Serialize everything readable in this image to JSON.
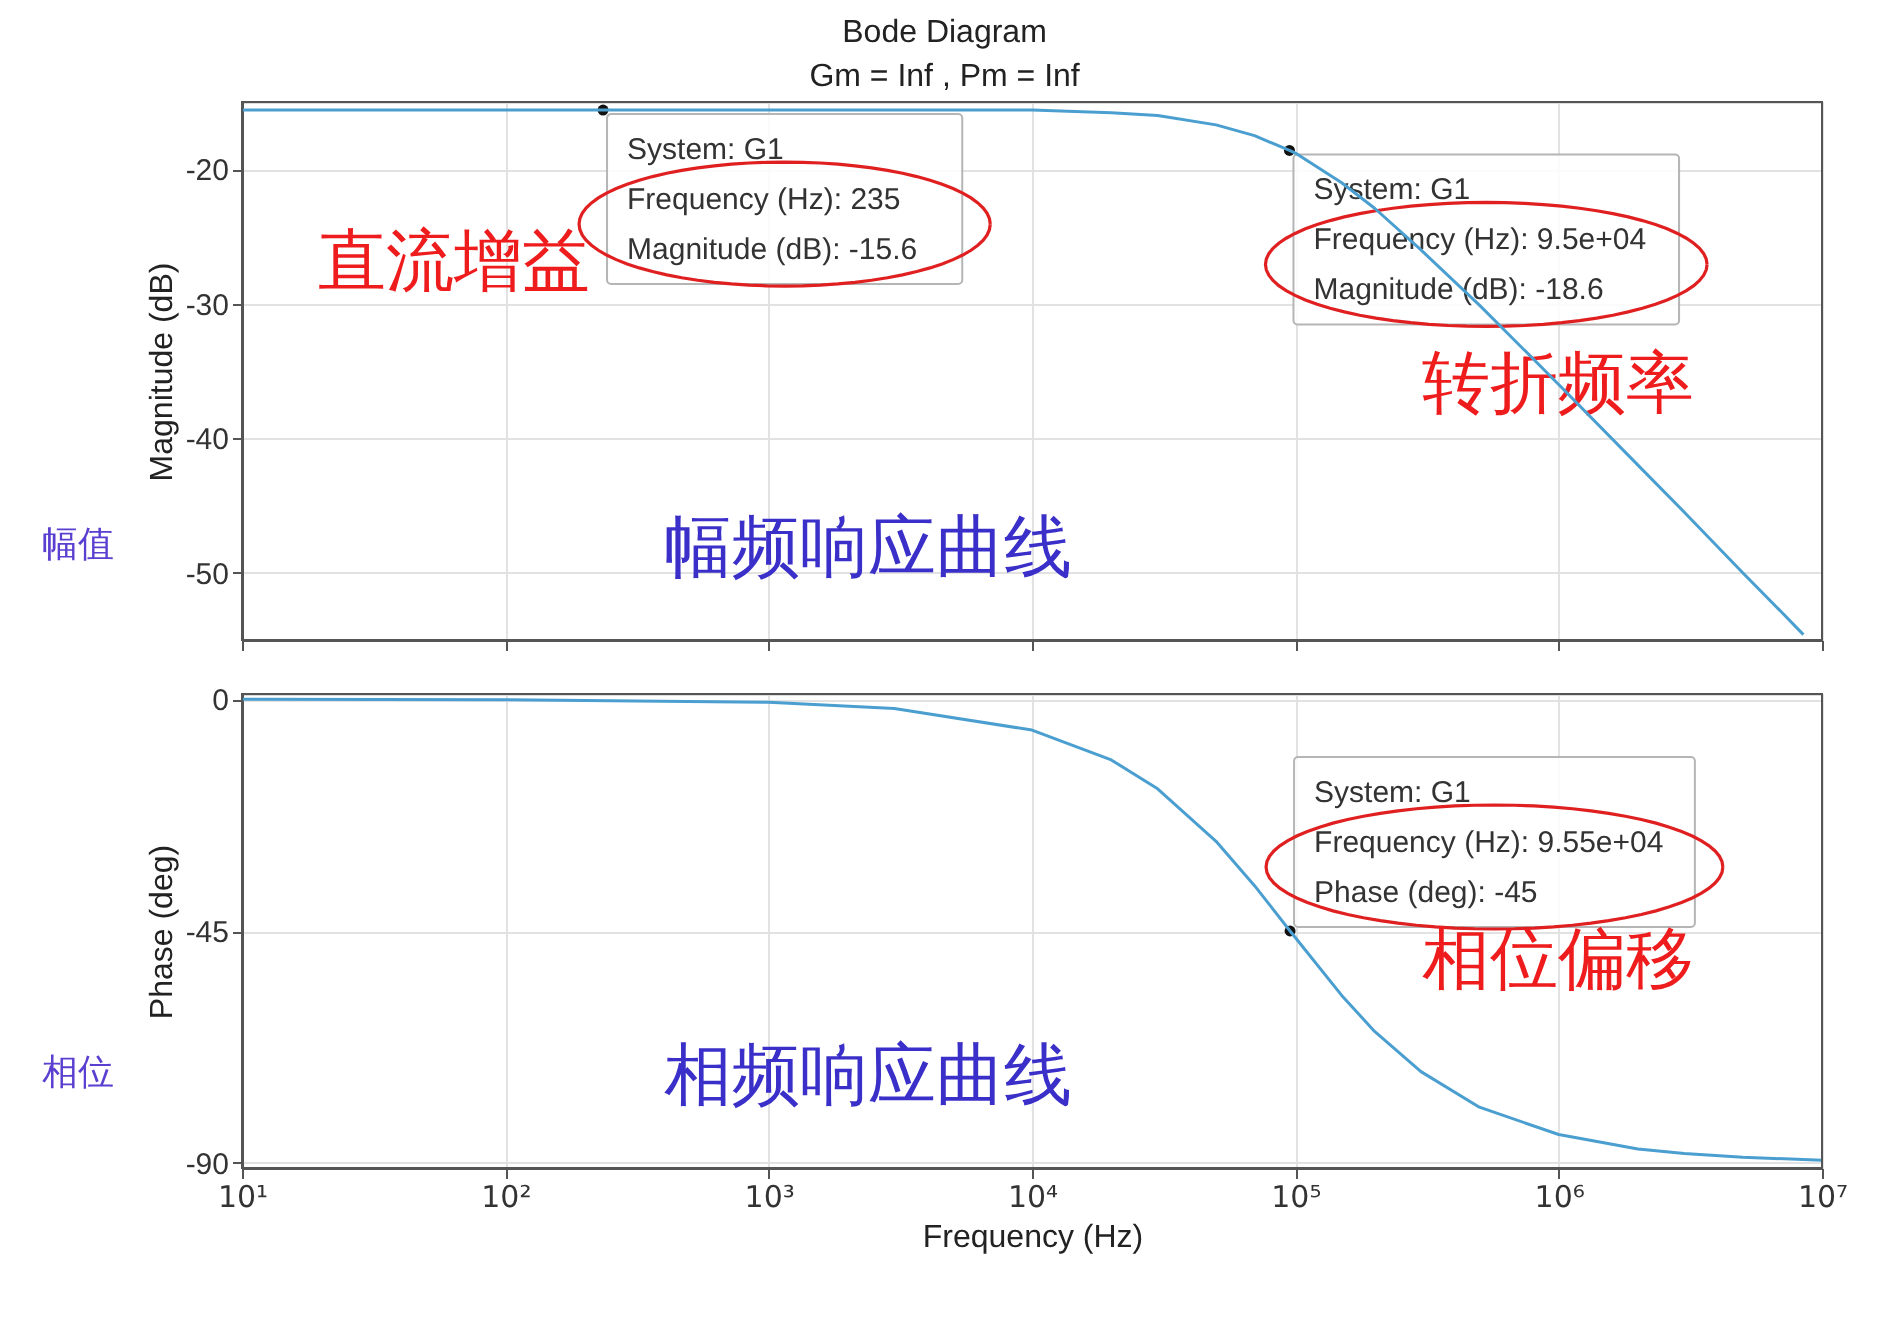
{
  "chart_data": [
    {
      "type": "line",
      "title": "Bode Diagram",
      "subtitle": "Gm = Inf ,  Pm = Inf",
      "ylabel": "Magnitude (dB)",
      "x": [
        10,
        100,
        1000,
        5000,
        10000,
        20000,
        30000,
        50000,
        70000,
        95000,
        100000,
        150000,
        200000,
        300000,
        500000,
        1000000,
        2000000,
        3000000,
        5000000,
        7000000,
        8500000
      ],
      "series": [
        {
          "color": "#4a9fd0",
          "values": [
            -15.6,
            -15.6,
            -15.6,
            -15.6,
            -15.6,
            -15.8,
            -16.0,
            -16.7,
            -17.5,
            -18.6,
            -18.8,
            -21.0,
            -22.9,
            -26.0,
            -30.1,
            -36.0,
            -42.0,
            -45.5,
            -50.0,
            -52.9,
            -54.6
          ]
        }
      ],
      "xlim": [
        10,
        10000000
      ],
      "xticks": [
        10,
        100,
        1000,
        10000,
        100000,
        1000000,
        10000000
      ],
      "log": "x",
      "ylim": [
        -55,
        -15
      ],
      "yticks": [
        -50,
        -40,
        -30,
        -20
      ],
      "grid": true,
      "tick_labels": "y",
      "annotations": [
        {
          "text": "System: G1\nFrequency (Hz): 235\nMagnitude (dB): -15.6",
          "x": 235,
          "y": -15.6
        },
        {
          "text": "System: G1\nFrequency (Hz): 9.5e+04\nMagnitude (dB): -18.6",
          "x": 95000,
          "y": -18.6
        },
        "直流增益",
        "转折频率",
        "幅频响应曲线",
        "幅值"
      ]
    },
    {
      "type": "line",
      "xlabel": "Frequency  (Hz)",
      "ylabel": "Phase (deg)",
      "x": [
        10,
        100,
        1000,
        3000,
        10000,
        20000,
        30000,
        50000,
        70000,
        95500,
        150000,
        200000,
        300000,
        500000,
        1000000,
        2000000,
        3000000,
        5000000,
        10000000
      ],
      "series": [
        {
          "color": "#4a9fd0",
          "values": [
            0,
            -0.1,
            -0.6,
            -1.8,
            -6.0,
            -11.8,
            -17.4,
            -27.6,
            -36.2,
            -45,
            -57.5,
            -64.5,
            -72.3,
            -79.2,
            -84.5,
            -87.3,
            -88.2,
            -88.9,
            -89.5
          ]
        }
      ],
      "xlim": [
        10,
        10000000
      ],
      "xticks": [
        {
          "value": 10,
          "label": "10¹"
        },
        {
          "value": 100,
          "label": "10²"
        },
        {
          "value": 1000,
          "label": "10³"
        },
        {
          "value": 10000,
          "label": "10⁴"
        },
        {
          "value": 100000,
          "label": "10⁵"
        },
        {
          "value": 1000000,
          "label": "10⁶"
        },
        {
          "value": 10000000,
          "label": "10⁷"
        }
      ],
      "log": "x",
      "ylim": [
        -91,
        1
      ],
      "yticks": [
        -90,
        -45,
        0
      ],
      "grid": true,
      "annotations": [
        {
          "text": "System: G1\nFrequency (Hz): 9.55e+04\nPhase (deg): -45",
          "x": 95500,
          "y": -45
        },
        "相位偏移",
        "相频响应曲线",
        "相位"
      ]
    }
  ]
}
